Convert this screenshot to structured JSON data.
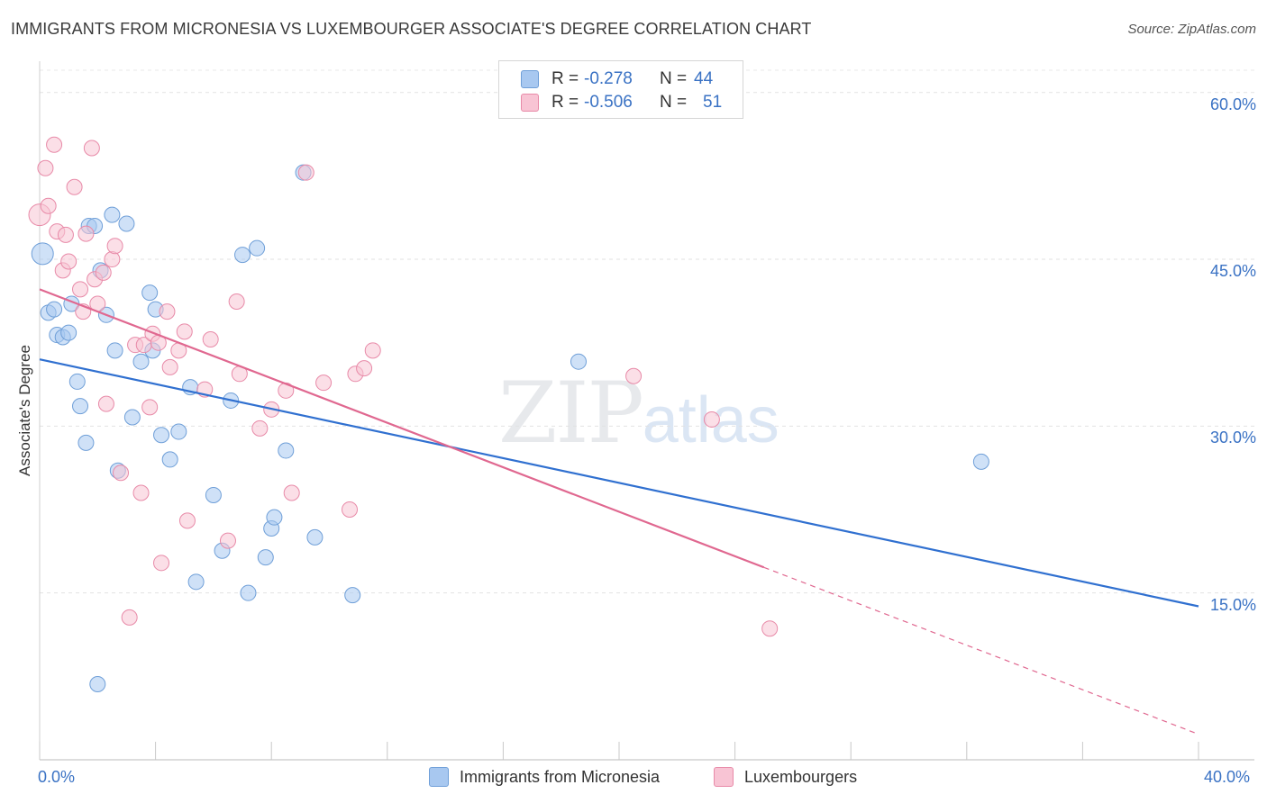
{
  "header": {
    "title": "IMMIGRANTS FROM MICRONESIA VS LUXEMBOURGER ASSOCIATE'S DEGREE CORRELATION CHART",
    "source": "Source: ZipAtlas.com"
  },
  "watermark": {
    "zip": "ZIP",
    "atlas": "atlas"
  },
  "legend": {
    "rows": [
      {
        "r_label": "R =",
        "r_value": "-0.278",
        "n_label": "N =",
        "n_value": "44",
        "color": "#a8c8f0",
        "border": "#6f9fd8"
      },
      {
        "r_label": "R =",
        "r_value": "-0.506",
        "n_label": "N =",
        "n_value": "51",
        "color": "#f8c4d4",
        "border": "#e88aa8"
      }
    ]
  },
  "chart_data": {
    "type": "scatter",
    "title": "IMMIGRANTS FROM MICRONESIA VS LUXEMBOURGER ASSOCIATE'S DEGREE CORRELATION CHART",
    "xlabel": "",
    "ylabel": "Associate's Degree",
    "xlim": [
      0,
      40
    ],
    "ylim": [
      0,
      62
    ],
    "x_tick_labels": [
      "0.0%",
      "40.0%"
    ],
    "y_ticks": [
      15,
      30,
      45,
      60
    ],
    "y_tick_labels": [
      "15.0%",
      "30.0%",
      "45.0%",
      "60.0%"
    ],
    "grid": true,
    "legend_position": "top-center",
    "series": [
      {
        "name": "Immigrants from Micronesia",
        "color": "#a8c8f0",
        "stroke": "#6f9fd8",
        "trend_color": "#3070d0",
        "trend": {
          "x0": 0,
          "y0": 36,
          "x1": 40,
          "y1": 13.8
        },
        "points": [
          [
            0.1,
            45.5
          ],
          [
            0.3,
            40.2
          ],
          [
            0.5,
            40.5
          ],
          [
            0.6,
            38.2
          ],
          [
            0.8,
            38.0
          ],
          [
            1.0,
            38.4
          ],
          [
            1.1,
            41.0
          ],
          [
            1.3,
            34.0
          ],
          [
            1.4,
            31.8
          ],
          [
            1.6,
            28.5
          ],
          [
            1.7,
            48.0
          ],
          [
            1.9,
            48.0
          ],
          [
            2.1,
            44.0
          ],
          [
            2.3,
            40.0
          ],
          [
            2.5,
            49.0
          ],
          [
            2.6,
            36.8
          ],
          [
            2.7,
            26.0
          ],
          [
            3.0,
            48.2
          ],
          [
            3.2,
            30.8
          ],
          [
            3.5,
            35.8
          ],
          [
            3.8,
            42.0
          ],
          [
            3.9,
            36.8
          ],
          [
            4.0,
            40.5
          ],
          [
            4.2,
            29.2
          ],
          [
            4.5,
            27.0
          ],
          [
            4.8,
            29.5
          ],
          [
            5.2,
            33.5
          ],
          [
            5.4,
            16.0
          ],
          [
            6.0,
            23.8
          ],
          [
            6.3,
            18.8
          ],
          [
            6.6,
            32.3
          ],
          [
            7.0,
            45.4
          ],
          [
            7.2,
            15.0
          ],
          [
            7.5,
            46.0
          ],
          [
            7.8,
            18.2
          ],
          [
            8.0,
            20.8
          ],
          [
            8.1,
            21.8
          ],
          [
            8.5,
            27.8
          ],
          [
            9.1,
            52.8
          ],
          [
            9.5,
            20.0
          ],
          [
            10.8,
            14.8
          ],
          [
            18.6,
            35.8
          ],
          [
            32.5,
            26.8
          ],
          [
            2.0,
            6.8
          ]
        ]
      },
      {
        "name": "Luxembourgers",
        "color": "#f8c4d4",
        "stroke": "#e88aa8",
        "trend_color": "#e06890",
        "trend": {
          "x0": 0,
          "y0": 42.3,
          "x1": 25,
          "y1": 17.3
        },
        "trend_dashed": {
          "x0": 25,
          "y0": 17.3,
          "x1": 40,
          "y1": 2.3
        },
        "points": [
          [
            0.0,
            49.0
          ],
          [
            0.2,
            53.2
          ],
          [
            0.3,
            49.8
          ],
          [
            0.5,
            55.3
          ],
          [
            0.6,
            47.5
          ],
          [
            0.8,
            44.0
          ],
          [
            0.9,
            47.2
          ],
          [
            1.0,
            44.8
          ],
          [
            1.2,
            51.5
          ],
          [
            1.4,
            42.3
          ],
          [
            1.5,
            40.3
          ],
          [
            1.6,
            47.3
          ],
          [
            1.8,
            55.0
          ],
          [
            1.9,
            43.2
          ],
          [
            2.0,
            41.0
          ],
          [
            2.2,
            43.8
          ],
          [
            2.3,
            32.0
          ],
          [
            2.5,
            45.0
          ],
          [
            2.6,
            46.2
          ],
          [
            2.8,
            25.8
          ],
          [
            3.1,
            12.8
          ],
          [
            3.3,
            37.3
          ],
          [
            3.5,
            24.0
          ],
          [
            3.6,
            37.3
          ],
          [
            3.8,
            31.7
          ],
          [
            3.9,
            38.3
          ],
          [
            4.1,
            37.5
          ],
          [
            4.2,
            17.7
          ],
          [
            4.4,
            40.3
          ],
          [
            4.5,
            35.3
          ],
          [
            4.8,
            36.8
          ],
          [
            5.0,
            38.5
          ],
          [
            5.1,
            21.5
          ],
          [
            5.7,
            33.3
          ],
          [
            5.9,
            37.8
          ],
          [
            6.5,
            19.7
          ],
          [
            6.8,
            41.2
          ],
          [
            6.9,
            34.7
          ],
          [
            7.6,
            29.8
          ],
          [
            8.0,
            31.5
          ],
          [
            8.5,
            33.2
          ],
          [
            8.7,
            24.0
          ],
          [
            9.2,
            52.8
          ],
          [
            9.8,
            33.9
          ],
          [
            10.7,
            22.5
          ],
          [
            10.9,
            34.7
          ],
          [
            11.2,
            35.2
          ],
          [
            11.5,
            36.8
          ],
          [
            20.5,
            34.5
          ],
          [
            23.2,
            30.6
          ],
          [
            25.2,
            11.8
          ]
        ]
      }
    ]
  }
}
